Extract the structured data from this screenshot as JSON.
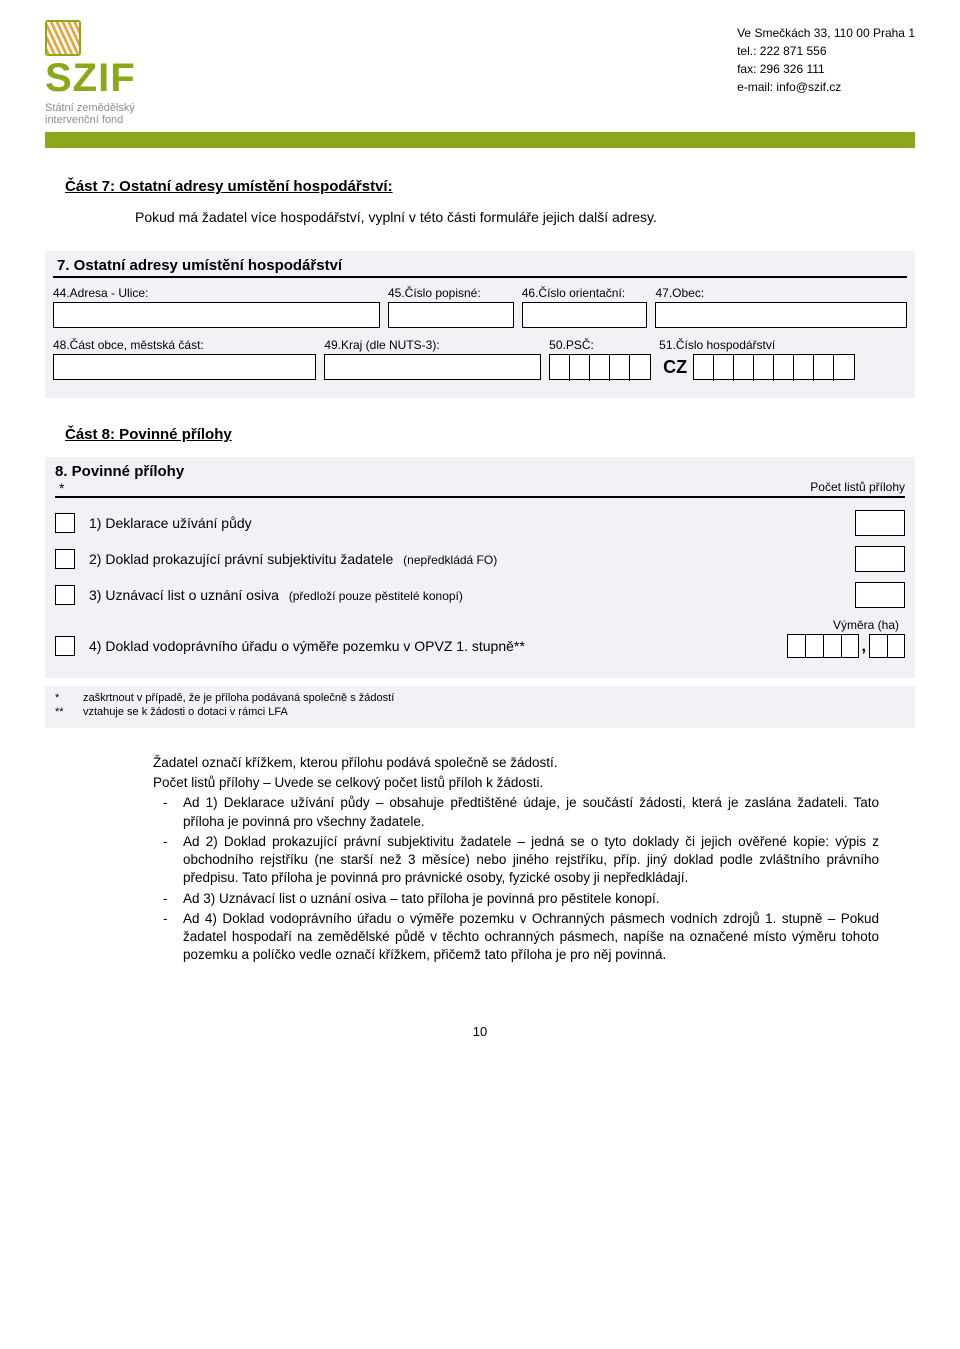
{
  "brand": {
    "name": "SZIF",
    "subtitle": "Státní zemědělský intervenční fond",
    "accent_color": "#8aa81a",
    "gray": "#8d8d8d",
    "bar_color": "#8aa81a",
    "field_border": "#8aa81a",
    "stripe_a": "#e8a33a",
    "stripe_b": "#ffffff"
  },
  "contact": {
    "address": "Ve Smečkách 33, 110 00 Praha 1",
    "tel": "tel.: 222 871 556",
    "fax": "fax: 296 326 111",
    "email": "e-mail: info@szif.cz"
  },
  "part7": {
    "heading": "Část 7: Ostatní adresy umístění hospodářství:",
    "info": "Pokud má žadatel více hospodářství, vyplní v této části formuláře jejich další adresy.",
    "block_title": "7. Ostatní adresy umístění hospodářství",
    "fields": {
      "f44": "44.Adresa  - Ulice:",
      "f45": "45.Číslo popisné:",
      "f46": "46.Číslo orientační:",
      "f47": "47.Obec:",
      "f48": "48.Část obce, městská část:",
      "f49": "49.Kraj (dle NUTS-3):",
      "f50": "50.PSČ:",
      "f51": "51.Číslo hospodářství",
      "cz": "CZ"
    }
  },
  "part8": {
    "heading": "Část 8: Povinné přílohy",
    "block_title": "8. Povinné přílohy",
    "star": "*",
    "count_label": "Počet listů přílohy",
    "items": {
      "i1": "1) Deklarace užívání půdy",
      "i2": "2) Doklad prokazující právní subjektivitu žadatele",
      "i2_sub": "(nepředkládá FO)",
      "i3": "3) Uznávací list o uznání osiva",
      "i3_sub": "(předloží pouze pěstitelé konopí)",
      "i4": "4) Doklad vodoprávního úřadu o výměře pozemku v OPVZ 1. stupně**",
      "vymera": "Výměra (ha)"
    },
    "footnotes": {
      "fn1": "zaškrtnout v případě, že je příloha podávaná společně s žádostí",
      "fn2": "vztahuje se k žádosti o dotaci v rámci LFA"
    }
  },
  "explain": {
    "p1": "Žadatel označí křížkem, kterou přílohu podává společně se žádostí.",
    "p2": "Počet listů přílohy – Uvede se celkový počet listů příloh k žádosti.",
    "b1": "Ad 1) Deklarace užívání půdy – obsahuje předtištěné údaje, je součástí žádosti, která je zaslána žadateli. Tato příloha je povinná pro všechny žadatele.",
    "b2": "Ad 2) Doklad prokazující právní subjektivitu žadatele – jedná se o tyto doklady či jejich ověřené kopie: výpis z obchodního rejstříku (ne starší než 3 měsíce) nebo jiného rejstříku, příp. jiný doklad podle zvláštního právního předpisu. Tato příloha je povinná pro právnické osoby, fyzické osoby ji nepředkládají.",
    "b3": "Ad 3) Uznávací list o uznání osiva – tato příloha je povinná pro pěstitele konopí.",
    "b4": "Ad 4) Doklad vodoprávního úřadu o výměře pozemku v Ochranných pásmech vodních zdrojů 1. stupně – Pokud žadatel hospodaří na zemědělské půdě v těchto ochranných pásmech, napíše na označené místo výměru tohoto pozemku a políčko vedle označí křížkem, přičemž tato příloha je pro něj povinná."
  },
  "page_number": "10",
  "layout": {
    "bg_form": "#f1f2f6",
    "text": "#000000"
  }
}
